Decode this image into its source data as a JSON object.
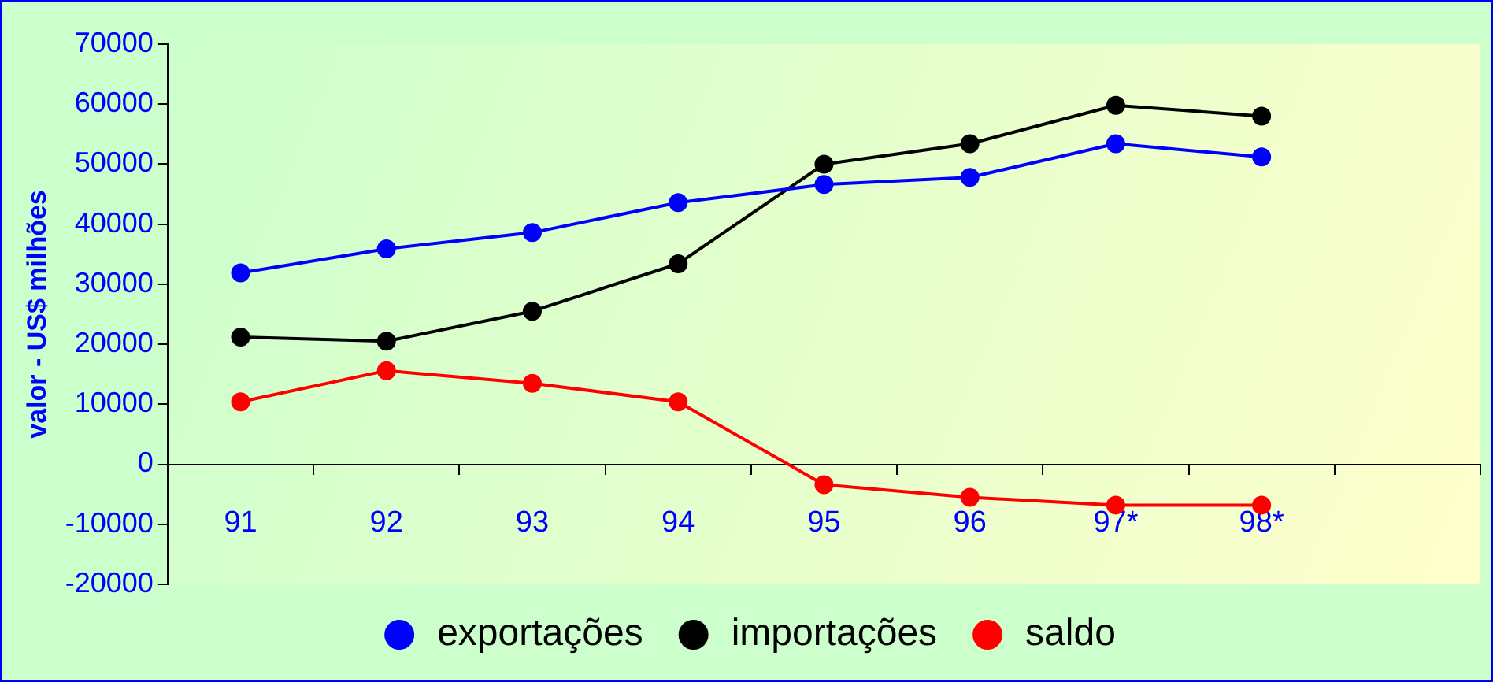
{
  "chart_data": {
    "type": "line",
    "ylabel": "valor - US$ milhões",
    "categories": [
      "91",
      "92",
      "93",
      "94",
      "95",
      "96",
      "97*",
      "98*",
      null
    ],
    "series": [
      {
        "name": "exportações",
        "color": "#0000ff",
        "values": [
          31900,
          35900,
          38600,
          43600,
          46600,
          47800,
          53400,
          51200,
          null
        ]
      },
      {
        "name": "importações",
        "color": "#000000",
        "values": [
          21200,
          20500,
          25500,
          33400,
          50000,
          53400,
          59800,
          58000,
          null
        ]
      },
      {
        "name": "saldo",
        "color": "#ff0000",
        "values": [
          10400,
          15600,
          13500,
          10400,
          -3400,
          -5500,
          -6800,
          -6800,
          null
        ]
      }
    ],
    "ylim": [
      -20000,
      70000
    ],
    "yticks": [
      -20000,
      -10000,
      0,
      10000,
      20000,
      30000,
      40000,
      50000,
      60000,
      70000
    ],
    "grid": false,
    "legend": "bottom",
    "marker": "circle",
    "line_style": "solid"
  }
}
